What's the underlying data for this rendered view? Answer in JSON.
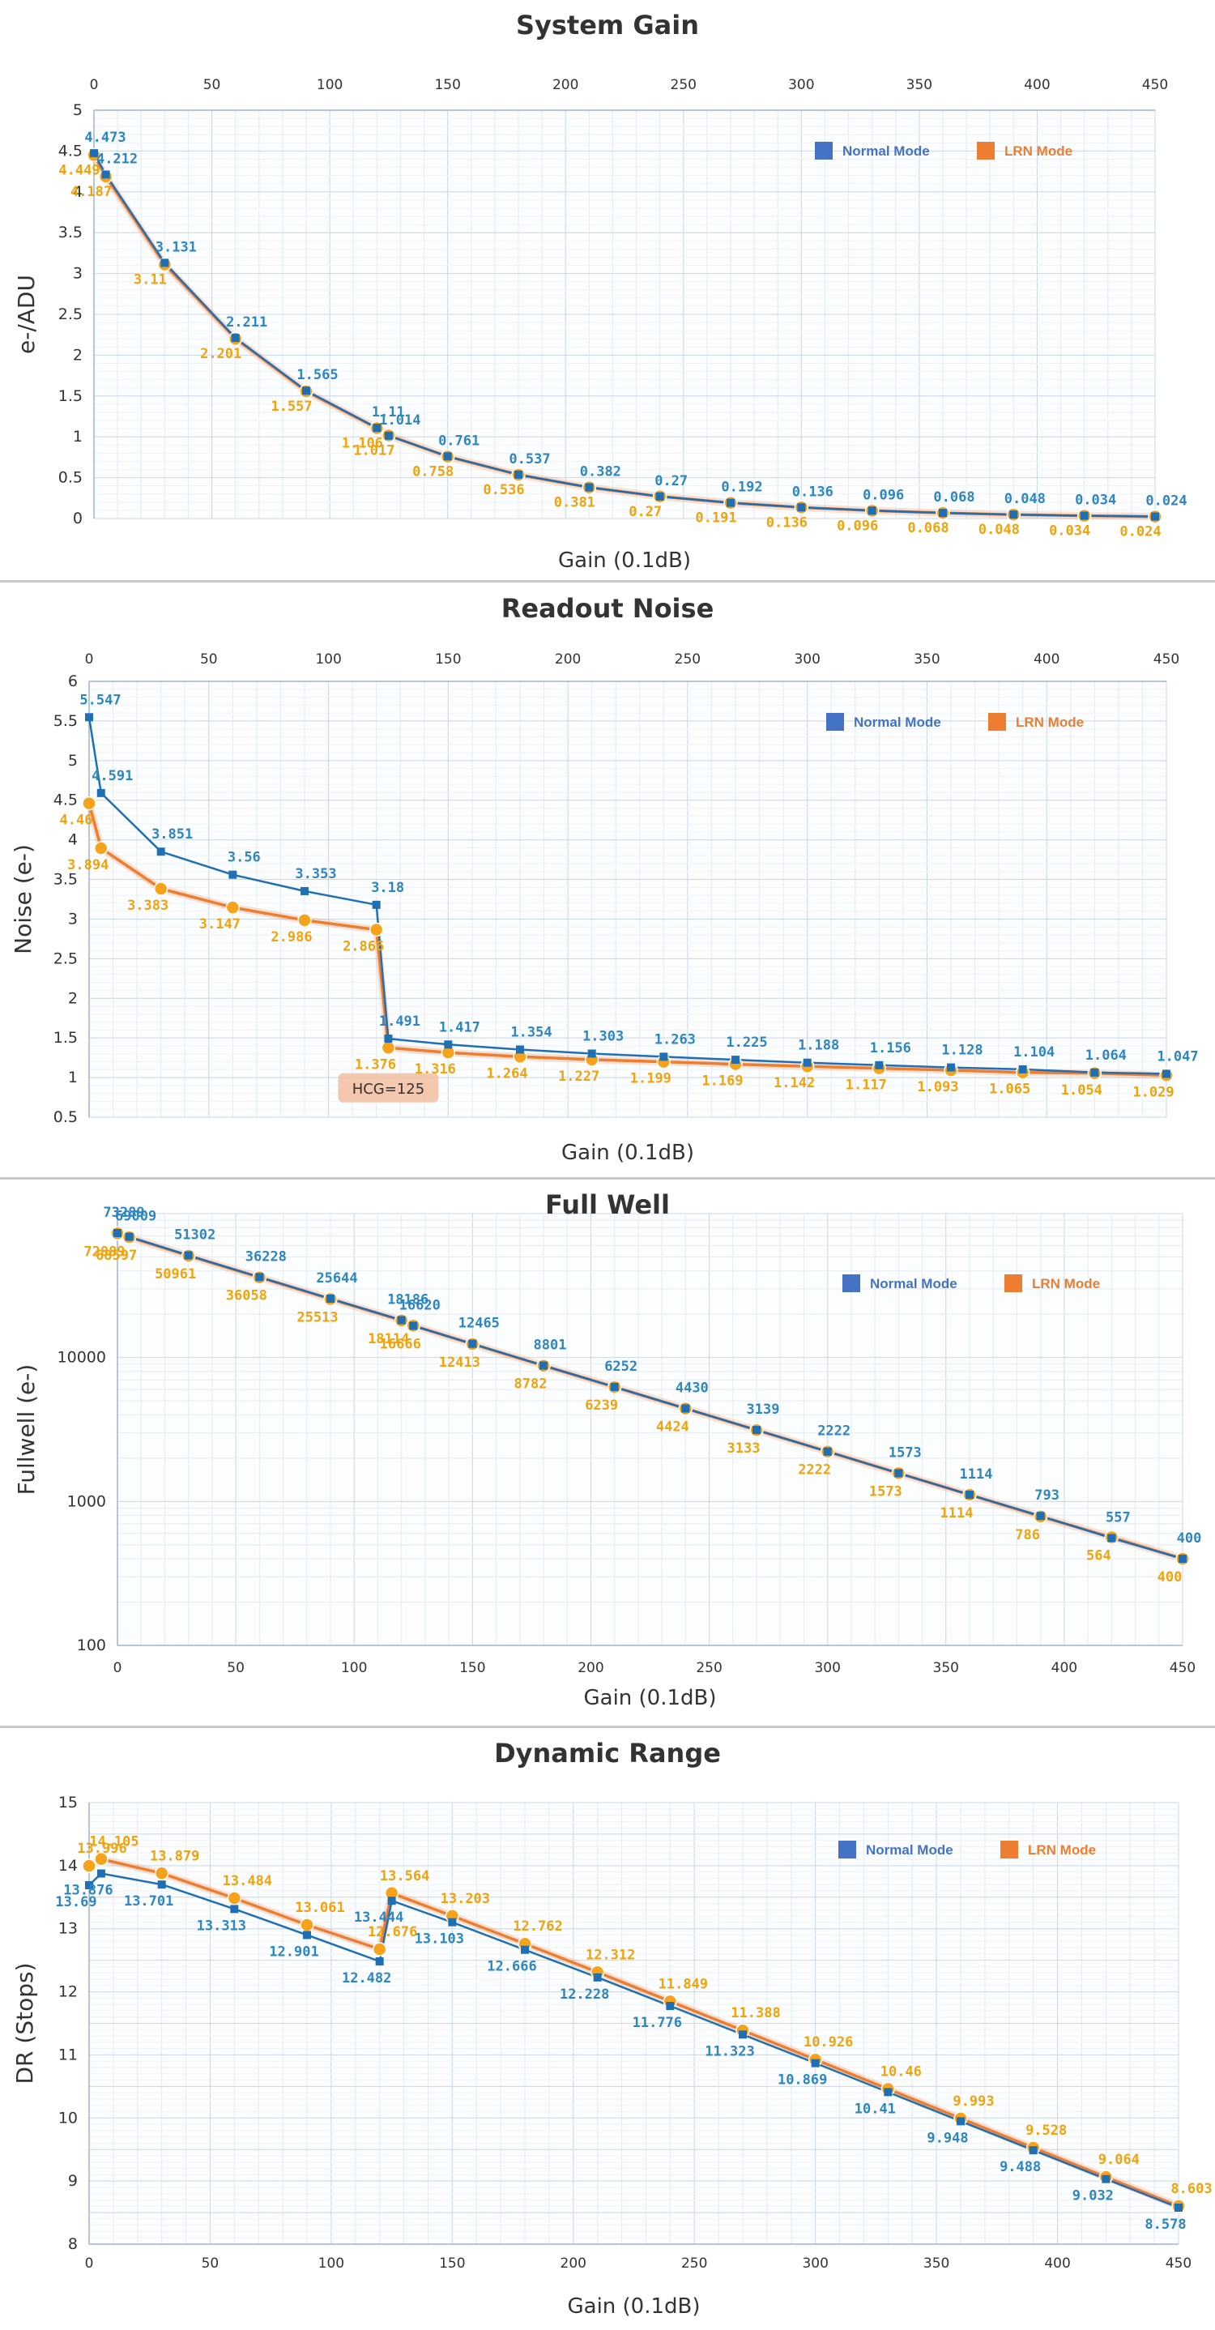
{
  "chart_data": [
    {
      "type": "line",
      "title": "System Gain",
      "xlabel": "Gain (0.1dB)",
      "ylabel": "e-/ADU",
      "xlim": [
        0,
        450
      ],
      "ylim": [
        0,
        5
      ],
      "yscale": "linear",
      "x_ticks": [
        "0",
        "50",
        "100",
        "150",
        "200",
        "250",
        "300",
        "350",
        "400",
        "450"
      ],
      "y_ticks": [
        "0",
        "0.5",
        "1",
        "1.5",
        "2",
        "2.5",
        "3",
        "3.5",
        "4",
        "4.5",
        "5"
      ],
      "x_axis_position": "top",
      "grid": true,
      "legend_position": "top-right",
      "series": [
        {
          "name": "Normal Mode",
          "color": "#1f6fb5",
          "label_color": "#2e86c1",
          "x": [
            0,
            5,
            30,
            60,
            90,
            120,
            125,
            150,
            180,
            210,
            240,
            270,
            300,
            330,
            360,
            390,
            420,
            450
          ],
          "values": [
            4.473,
            4.212,
            3.131,
            2.211,
            1.565,
            1.11,
            1.014,
            0.761,
            0.537,
            0.382,
            0.27,
            0.192,
            0.136,
            0.096,
            0.068,
            0.048,
            0.034,
            0.024
          ],
          "labels": [
            "4.473",
            "4.212",
            "3.131",
            "2.211",
            "1.565",
            "1.11",
            "1.014",
            "0.761",
            "0.537",
            "0.382",
            "0.27",
            "0.192",
            "0.136",
            "0.096",
            "0.068",
            "0.048",
            "0.034",
            "0.024"
          ]
        },
        {
          "name": "LRN Mode",
          "color": "#ed7d31",
          "label_color": "#f0a30a",
          "x": [
            0,
            5,
            30,
            60,
            90,
            120,
            125,
            150,
            180,
            210,
            240,
            270,
            300,
            330,
            360,
            390,
            420,
            450
          ],
          "values": [
            4.449,
            4.187,
            3.11,
            2.201,
            1.557,
            1.106,
            1.017,
            0.758,
            0.536,
            0.381,
            0.27,
            0.191,
            0.136,
            0.096,
            0.068,
            0.048,
            0.034,
            0.024
          ],
          "labels": [
            "4.449",
            "4.187",
            "3.11",
            "2.201",
            "1.557",
            "1.106",
            "1.017",
            "0.758",
            "0.536",
            "0.381",
            "0.27",
            "0.191",
            "0.136",
            "0.096",
            "0.068",
            "0.048",
            "0.034",
            "0.024"
          ]
        }
      ]
    },
    {
      "type": "line",
      "title": "Readout Noise",
      "xlabel": "Gain (0.1dB)",
      "ylabel": "Noise (e-)",
      "xlim": [
        0,
        450
      ],
      "ylim": [
        0.5,
        6
      ],
      "yscale": "linear",
      "x_ticks": [
        "0",
        "50",
        "100",
        "150",
        "200",
        "250",
        "300",
        "350",
        "400",
        "450"
      ],
      "y_ticks": [
        "0.5",
        "1",
        "1.5",
        "2",
        "2.5",
        "3",
        "3.5",
        "4",
        "4.5",
        "5",
        "5.5",
        "6"
      ],
      "x_axis_position": "top",
      "grid": true,
      "legend_position": "top-right",
      "annotation": "HCG=125",
      "series": [
        {
          "name": "Normal Mode",
          "color": "#1f6fb5",
          "label_color": "#2e86c1",
          "x": [
            0,
            5,
            30,
            60,
            90,
            120,
            125,
            150,
            180,
            210,
            240,
            270,
            300,
            330,
            360,
            390,
            420,
            450
          ],
          "values": [
            5.547,
            4.591,
            3.851,
            3.56,
            3.353,
            3.18,
            1.491,
            1.417,
            1.354,
            1.303,
            1.263,
            1.225,
            1.188,
            1.156,
            1.128,
            1.104,
            1.064,
            1.047
          ],
          "labels": [
            "5.547",
            "4.591",
            "3.851",
            "3.56",
            "3.353",
            "3.18",
            "1.491",
            "1.417",
            "1.354",
            "1.303",
            "1.263",
            "1.225",
            "1.188",
            "1.156",
            "1.128",
            "1.104",
            "1.064",
            "1.047"
          ]
        },
        {
          "name": "LRN Mode",
          "color": "#ed7d31",
          "label_color": "#f0a30a",
          "x": [
            0,
            5,
            30,
            60,
            90,
            120,
            125,
            150,
            180,
            210,
            240,
            270,
            300,
            330,
            360,
            390,
            420,
            450
          ],
          "values": [
            4.46,
            3.894,
            3.383,
            3.147,
            2.986,
            2.866,
            1.376,
            1.316,
            1.264,
            1.227,
            1.199,
            1.169,
            1.142,
            1.117,
            1.093,
            1.065,
            1.054,
            1.029
          ],
          "labels": [
            "4.46",
            "3.894",
            "3.383",
            "3.147",
            "2.986",
            "2.866",
            "1.376",
            "1.316",
            "1.264",
            "1.227",
            "1.199",
            "1.169",
            "1.142",
            "1.117",
            "1.093",
            "1.065",
            "1.054",
            "1.029"
          ]
        }
      ]
    },
    {
      "type": "line",
      "title": "Full Well",
      "xlabel": "Gain (0.1dB)",
      "ylabel": "Fullwell (e-)",
      "xlim": [
        0,
        450
      ],
      "ylim": [
        100,
        100000
      ],
      "yscale": "log",
      "x_ticks": [
        "0",
        "50",
        "100",
        "150",
        "200",
        "250",
        "300",
        "350",
        "400",
        "450"
      ],
      "y_ticks": [
        "100",
        "1000",
        "10000"
      ],
      "x_axis_position": "bottom",
      "grid": true,
      "legend_position": "top-right",
      "series": [
        {
          "name": "Normal Mode",
          "color": "#1f6fb5",
          "label_color": "#2e86c1",
          "x": [
            0,
            5,
            30,
            60,
            90,
            120,
            125,
            150,
            180,
            210,
            240,
            270,
            300,
            330,
            360,
            390,
            420,
            450
          ],
          "values": [
            73289,
            69009,
            51302,
            36228,
            25644,
            18186,
            16620,
            12465,
            8801,
            6252,
            4430,
            3139,
            2222,
            1573,
            1114,
            793,
            557,
            400
          ],
          "labels": [
            "73289",
            "69009",
            "51302",
            "36228",
            "25644",
            "18186",
            "16620",
            "12465",
            "8801",
            "6252",
            "4430",
            "3139",
            "2222",
            "1573",
            "1114",
            "793",
            "557",
            "400"
          ]
        },
        {
          "name": "LRN Mode",
          "color": "#ed7d31",
          "label_color": "#f0a30a",
          "x": [
            0,
            5,
            30,
            60,
            90,
            120,
            125,
            150,
            180,
            210,
            240,
            270,
            300,
            330,
            360,
            390,
            420,
            450
          ],
          "values": [
            72889,
            68597,
            50961,
            36058,
            25513,
            18114,
            16666,
            12413,
            8782,
            6239,
            4424,
            3133,
            2222,
            1573,
            1114,
            786,
            564,
            400
          ],
          "labels": [
            "72889",
            "68597",
            "50961",
            "36058",
            "25513",
            "18114",
            "16666",
            "12413",
            "8782",
            "6239",
            "4424",
            "3133",
            "2222",
            "1573",
            "1114",
            "786",
            "564",
            "400"
          ]
        }
      ]
    },
    {
      "type": "line",
      "title": "Dynamic Range",
      "xlabel": "Gain (0.1dB)",
      "ylabel": "DR (Stops)",
      "xlim": [
        0,
        450
      ],
      "ylim": [
        8,
        15
      ],
      "yscale": "linear",
      "x_ticks": [
        "0",
        "50",
        "100",
        "150",
        "200",
        "250",
        "300",
        "350",
        "400",
        "450"
      ],
      "y_ticks": [
        "8",
        "9",
        "10",
        "11",
        "12",
        "13",
        "14",
        "15"
      ],
      "x_axis_position": "bottom",
      "grid": true,
      "legend_position": "top-right",
      "series": [
        {
          "name": "Normal Mode",
          "color": "#1f6fb5",
          "label_color": "#2e86c1",
          "x": [
            0,
            5,
            30,
            60,
            90,
            120,
            125,
            150,
            180,
            210,
            240,
            270,
            300,
            330,
            360,
            390,
            420,
            450
          ],
          "values": [
            13.69,
            13.876,
            13.701,
            13.313,
            12.901,
            12.482,
            13.444,
            13.103,
            12.666,
            12.228,
            11.776,
            11.323,
            10.869,
            10.41,
            9.948,
            9.488,
            9.032,
            8.578
          ],
          "labels": [
            "13.69",
            "13.876",
            "13.701",
            "13.313",
            "12.901",
            "12.482",
            "13.444",
            "13.103",
            "12.666",
            "12.228",
            "11.776",
            "11.323",
            "10.869",
            "10.41",
            "9.948",
            "9.488",
            "9.032",
            "8.578"
          ]
        },
        {
          "name": "LRN Mode",
          "color": "#ed7d31",
          "label_color": "#f0a30a",
          "x": [
            0,
            5,
            30,
            60,
            90,
            120,
            125,
            150,
            180,
            210,
            240,
            270,
            300,
            330,
            360,
            390,
            420,
            450
          ],
          "values": [
            13.996,
            14.105,
            13.879,
            13.484,
            13.061,
            12.676,
            13.564,
            13.203,
            12.762,
            12.312,
            11.849,
            11.388,
            10.926,
            10.46,
            9.993,
            9.528,
            9.064,
            8.603
          ],
          "labels": [
            "13.996",
            "14.105",
            "13.879",
            "13.484",
            "13.061",
            "12.676",
            "13.564",
            "13.203",
            "12.762",
            "12.312",
            "11.849",
            "11.388",
            "10.926",
            "10.46",
            "9.993",
            "9.528",
            "9.064",
            "8.603"
          ]
        }
      ]
    }
  ]
}
